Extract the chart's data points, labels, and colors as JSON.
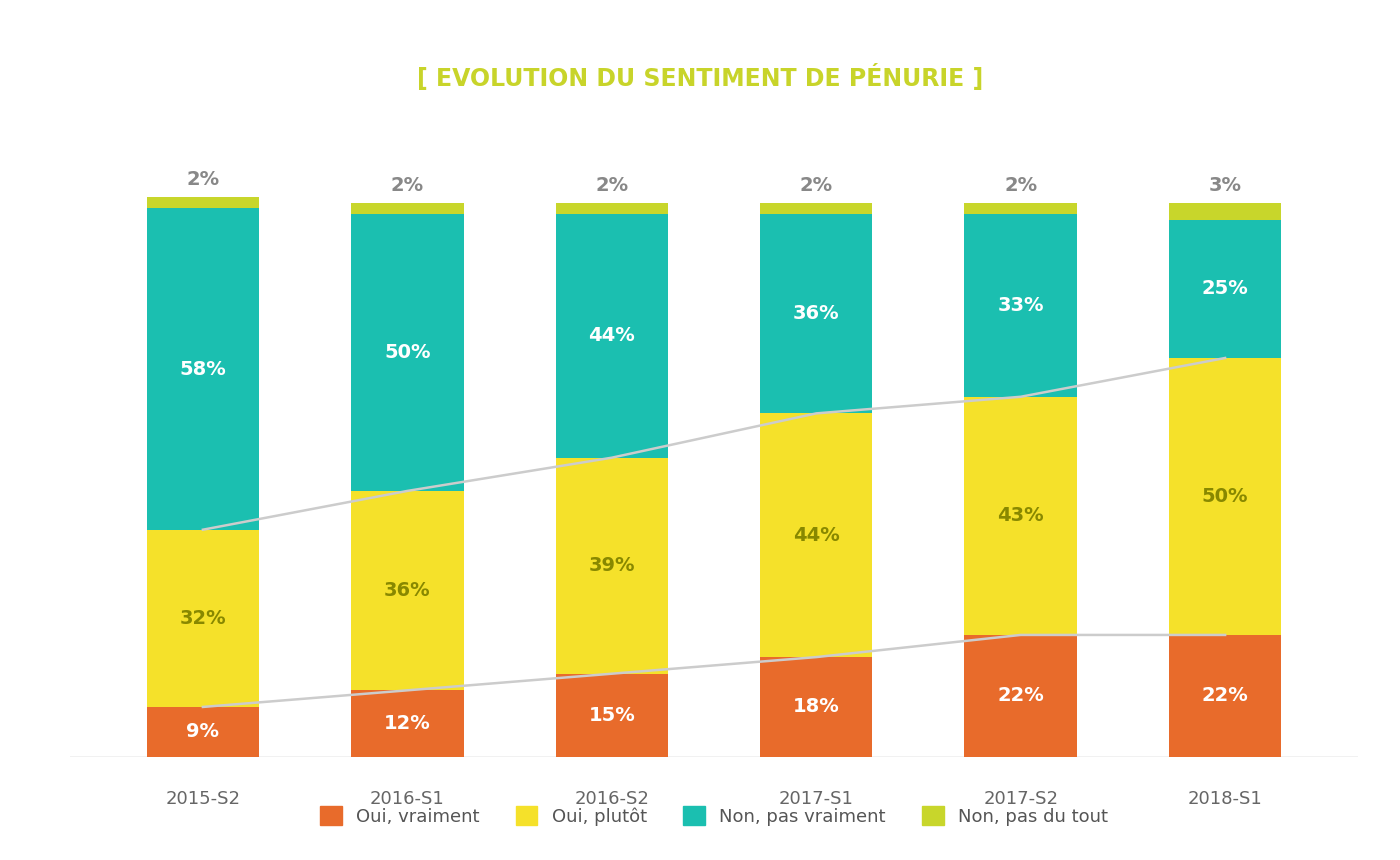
{
  "categories": [
    "2015-S2",
    "2016-S1",
    "2016-S2",
    "2017-S1",
    "2017-S2",
    "2018-S1"
  ],
  "oui_vraiment": [
    9,
    12,
    15,
    18,
    22,
    22
  ],
  "oui_plutot": [
    32,
    36,
    39,
    44,
    43,
    50
  ],
  "non_pas_vraiment": [
    58,
    50,
    44,
    36,
    33,
    25
  ],
  "non_pas_du_tout": [
    2,
    2,
    2,
    2,
    2,
    3
  ],
  "color_oui_vraiment": "#E86B2B",
  "color_oui_plutot": "#F5E12A",
  "color_non_pas_vraiment": "#1BBFB0",
  "color_non_pas_du_tout": "#C8D62B",
  "title": "[ EVOLUTION DU SENTIMENT DE PÉNURIE ]",
  "title_color": "#C8D42A",
  "legend_labels": [
    "Oui, vraiment",
    "Oui, plutôt",
    "Non, pas vraiment",
    "Non, pas du tout"
  ],
  "bar_width": 0.55,
  "background_color": "#ffffff",
  "top_label_color": "#888888",
  "xticklabel_color": "#666666",
  "trendline_color": "#cccccc"
}
